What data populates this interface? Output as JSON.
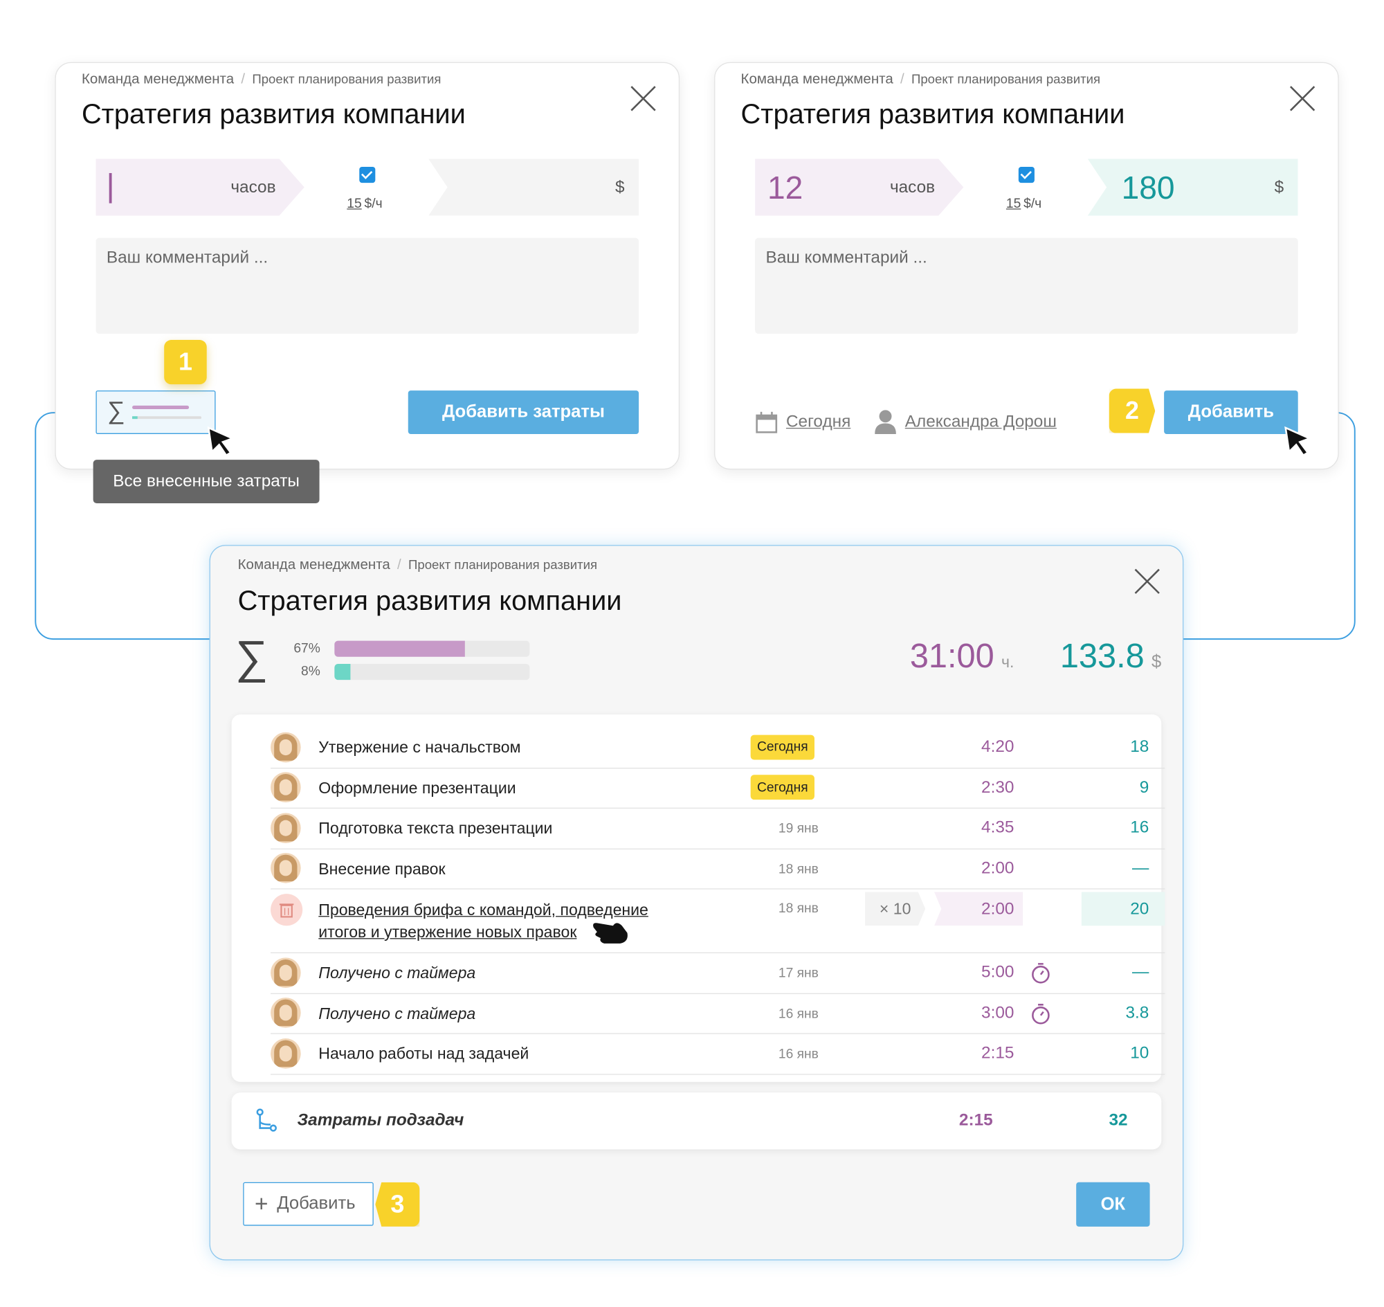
{
  "dialog1": {
    "breadcrumb": [
      "Команда менеджмента",
      "Проект планирования развития"
    ],
    "title": "Стратегия развития компании",
    "hours_unit": "часов",
    "rate": "15",
    "rate_unit": "$/ч",
    "currency": "$",
    "comment_placeholder": "Ваш комментарий ...",
    "badge": "1",
    "button": "Добавить затраты",
    "tooltip": "Все внесенные затраты"
  },
  "dialog2": {
    "breadcrumb": [
      "Команда менеджмента",
      "Проект планирования развития"
    ],
    "title": "Стратегия развития компании",
    "hours": "12",
    "hours_unit": "часов",
    "rate": "15",
    "rate_unit": "$/ч",
    "amount": "180",
    "currency": "$",
    "comment_placeholder": "Ваш комментарий ...",
    "date": "Сегодня",
    "user": "Александра Дорош",
    "badge": "2",
    "button": "Добавить"
  },
  "dialog3": {
    "breadcrumb": [
      "Команда менеджмента",
      "Проект планирования развития"
    ],
    "title": "Стратегия развития компании",
    "progress": [
      {
        "label": "67%",
        "value": 67
      },
      {
        "label": "8%",
        "value": 8
      }
    ],
    "total_hours": "31:00",
    "hours_unit": "ч.",
    "total_amount": "133.8",
    "currency": "$",
    "rows": [
      {
        "task": "Утвержение с начальством",
        "tag": "Сегодня",
        "time": "4:20",
        "amount": "18"
      },
      {
        "task": "Оформление презентации",
        "tag": "Сегодня",
        "time": "2:30",
        "amount": "9"
      },
      {
        "task": "Подготовка текста презентации",
        "date": "19 янв",
        "time": "4:35",
        "amount": "16"
      },
      {
        "task": "Внесение правок",
        "date": "18 янв",
        "time": "2:00",
        "amount": "—"
      },
      {
        "task": "Проведения брифа с командой, подведение итогов и утвержение новых правок",
        "date": "18 янв",
        "multiplier": "× 10",
        "time": "2:00",
        "amount": "20",
        "editing": true
      },
      {
        "task": "Получено с таймера",
        "date": "17 янв",
        "time": "5:00",
        "amount": "—",
        "timer": true
      },
      {
        "task": "Получено с таймера",
        "date": "16 янв",
        "time": "3:00",
        "amount": "3.8",
        "timer": true
      },
      {
        "task": "Начало работы над задачей",
        "date": "16 янв",
        "time": "2:15",
        "amount": "10"
      }
    ],
    "subtasks": {
      "label": "Затраты подзадач",
      "time": "2:15",
      "amount": "32"
    },
    "add_button": "Добавить",
    "badge": "3",
    "ok": "ОК"
  }
}
